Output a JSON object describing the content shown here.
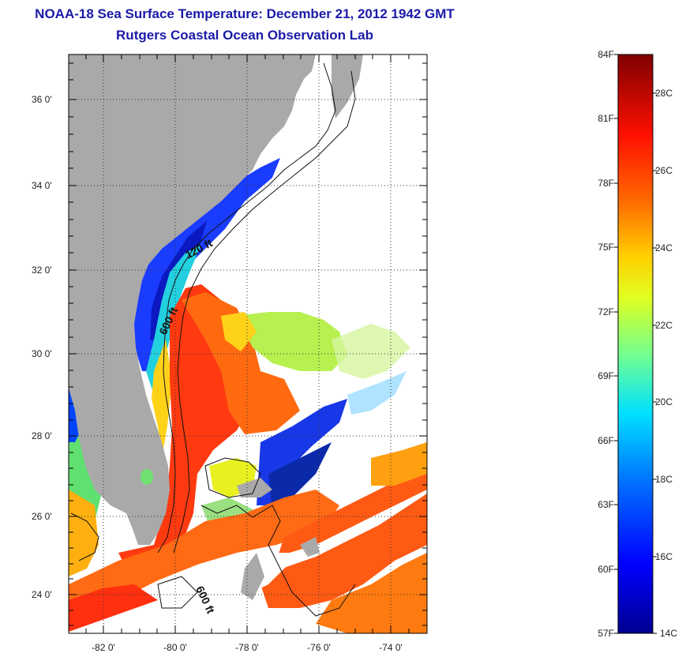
{
  "title": {
    "line1": "NOAA-18 Sea Surface Temperature:  December 21, 2012 1942 GMT",
    "line2": "Rutgers Coastal Ocean Observation Lab"
  },
  "map": {
    "lat_labels": [
      "36 0'",
      "34 0'",
      "32 0'",
      "30 0'",
      "28 0'",
      "26 0'",
      "24 0'"
    ],
    "lon_labels": [
      "-82 0'",
      "-80 0'",
      "-78 0'",
      "-76 0'",
      "-74 0'"
    ],
    "contour_labels": [
      "120 ft",
      "600 ft",
      "600 ft"
    ],
    "land_color": "#a9a9a9"
  },
  "colorbar": {
    "fahrenheit_labels": [
      "84F",
      "81F",
      "78F",
      "75F",
      "72F",
      "69F",
      "66F",
      "63F",
      "60F",
      "57F"
    ],
    "celsius_labels": [
      "28C",
      "26C",
      "24C",
      "22C",
      "20C",
      "18C",
      "16C",
      "14C"
    ],
    "colormap": [
      "#00008f",
      "#0000ff",
      "#0080ff",
      "#00ffff",
      "#80ff80",
      "#ffff00",
      "#ff8000",
      "#ff0000",
      "#800000"
    ]
  }
}
